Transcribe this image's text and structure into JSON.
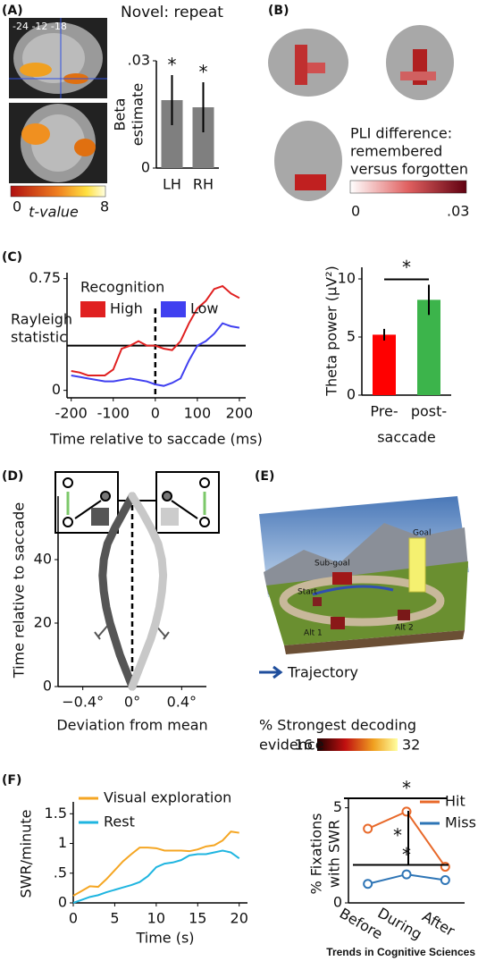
{
  "panels": {
    "A": {
      "label": "(A)",
      "coords": "-24 -12 -18",
      "colorbar": {
        "min": "0",
        "title": "t-value",
        "max": "8"
      }
    },
    "B": {
      "label": "(B)",
      "colorbar_title": [
        "PLI difference:",
        "remembered",
        "versus forgotten"
      ],
      "colorbar": {
        "min": "0",
        "max": ".03"
      }
    },
    "C": {
      "label": "(C)"
    },
    "D": {
      "label": "(D)"
    },
    "E": {
      "label": "(E)",
      "scene_labels": [
        "Goal",
        "Sub-goal",
        "Start",
        "Alt 1",
        "Alt 2"
      ],
      "legend": "Trajectory",
      "colorbar_title": [
        "% Strongest decoding",
        "evidence"
      ],
      "colorbar": {
        "min": "16",
        "max": "32"
      }
    },
    "F": {
      "label": "(F)"
    }
  },
  "chart_data": [
    {
      "type": "bar",
      "title": "Novel: repeat",
      "ylabel": [
        "Beta",
        "estimate"
      ],
      "categories": [
        "LH",
        "RH"
      ],
      "values": [
        0.019,
        0.017
      ],
      "errors": [
        0.007,
        0.007
      ],
      "color": "#7f7f7f",
      "ylim": [
        0,
        0.03
      ],
      "yticks": [
        0,
        {
          "value": 0.03,
          "label": ".03"
        }
      ],
      "annotations": [
        "*",
        "*"
      ]
    },
    {
      "type": "line",
      "xlabel": "Time relative to saccade (ms)",
      "ylabel": [
        "Rayleigh",
        "statistic"
      ],
      "legend_title": "Recognition",
      "x": [
        -200,
        -180,
        -160,
        -140,
        -120,
        -100,
        -80,
        -60,
        -40,
        -20,
        0,
        20,
        40,
        60,
        80,
        100,
        120,
        140,
        160,
        180,
        200
      ],
      "series": [
        {
          "name": "High",
          "color": "#e02020",
          "values": [
            0.13,
            0.12,
            0.1,
            0.1,
            0.1,
            0.14,
            0.28,
            0.3,
            0.33,
            0.3,
            0.3,
            0.28,
            0.27,
            0.33,
            0.45,
            0.55,
            0.6,
            0.68,
            0.7,
            0.65,
            0.62
          ]
        },
        {
          "name": "Low",
          "color": "#4040f0",
          "values": [
            0.1,
            0.09,
            0.08,
            0.07,
            0.06,
            0.06,
            0.07,
            0.08,
            0.07,
            0.06,
            0.04,
            0.03,
            0.05,
            0.08,
            0.2,
            0.3,
            0.33,
            0.38,
            0.45,
            0.43,
            0.42
          ]
        }
      ],
      "xlim": [
        -210,
        215
      ],
      "xticks": [
        -200,
        -100,
        0,
        100,
        200
      ],
      "ylim": [
        -0.05,
        0.79
      ],
      "yticks": [
        0,
        0.75
      ],
      "threshold": 0.3,
      "vline": 0
    },
    {
      "type": "bar",
      "ylabel": "Theta power (μV²)",
      "xlabel": "saccade",
      "categories": [
        "Pre-",
        "post-"
      ],
      "values": [
        5.2,
        8.2
      ],
      "errors": [
        0.5,
        1.3
      ],
      "colors": [
        "#ff0000",
        "#3cb44b"
      ],
      "ylim": [
        0,
        11
      ],
      "yticks": [
        0,
        5,
        10
      ],
      "annotations": [
        "*"
      ]
    },
    {
      "type": "line",
      "value_axis": "x",
      "xlabel": "Deviation from mean",
      "ylabel": "Time relative to saccade",
      "y": [
        0,
        5,
        10,
        15,
        20,
        25,
        30,
        35,
        40,
        45,
        50,
        55,
        60
      ],
      "series": [
        {
          "color": "#555555",
          "values": [
            0,
            -0.05,
            -0.1,
            -0.14,
            -0.18,
            -0.21,
            -0.23,
            -0.24,
            -0.23,
            -0.2,
            -0.14,
            -0.07,
            0
          ]
        },
        {
          "color": "#c8c8c8",
          "values": [
            0,
            0.05,
            0.1,
            0.15,
            0.19,
            0.22,
            0.24,
            0.25,
            0.24,
            0.21,
            0.15,
            0.08,
            0
          ]
        }
      ],
      "xlim": [
        -0.6,
        0.6
      ],
      "xticks": [
        {
          "value": -0.4,
          "label": "−0.4°"
        },
        {
          "value": 0,
          "label": "0°"
        },
        {
          "value": 0.4,
          "label": "0.4°"
        }
      ],
      "ylim": [
        0,
        60
      ],
      "yticks": [
        0,
        20,
        40
      ],
      "vline": 0
    },
    {
      "type": "line",
      "xlabel": "Time (s)",
      "ylabel": "SWR/minute",
      "x": [
        0,
        1,
        2,
        3,
        4,
        5,
        6,
        7,
        8,
        9,
        10,
        11,
        12,
        13,
        14,
        15,
        16,
        17,
        18,
        19,
        20
      ],
      "series": [
        {
          "name": "Visual exploration",
          "color": "#f5a623",
          "values": [
            0.12,
            0.2,
            0.28,
            0.27,
            0.4,
            0.55,
            0.7,
            0.82,
            0.93,
            0.93,
            0.92,
            0.88,
            0.88,
            0.88,
            0.87,
            0.9,
            0.95,
            0.97,
            1.05,
            1.2,
            1.18
          ]
        },
        {
          "name": "Rest",
          "color": "#1fb5e0",
          "values": [
            0,
            0.05,
            0.1,
            0.13,
            0.18,
            0.22,
            0.26,
            0.3,
            0.35,
            0.45,
            0.6,
            0.66,
            0.68,
            0.72,
            0.8,
            0.82,
            0.82,
            0.85,
            0.88,
            0.85,
            0.75
          ]
        }
      ],
      "xlim": [
        0,
        21
      ],
      "xticks": [
        0,
        5,
        10,
        15,
        20
      ],
      "ylim": [
        0,
        1.7
      ],
      "yticks": [
        0,
        {
          "value": 0.5,
          "label": ".5"
        },
        1,
        1.5
      ]
    },
    {
      "type": "line",
      "ylabel": [
        "% Fixations",
        "with SWR"
      ],
      "categories": [
        "Before",
        "During",
        "After"
      ],
      "markers": true,
      "series": [
        {
          "name": "Hit",
          "color": "#e8692a",
          "values": [
            3.9,
            4.8,
            1.9
          ]
        },
        {
          "name": "Miss",
          "color": "#2e75b6",
          "values": [
            1.0,
            1.5,
            1.2
          ]
        }
      ],
      "ylim": [
        0,
        5.5
      ],
      "yticks": [
        0,
        5
      ],
      "annotations": [
        "*",
        "*",
        "*"
      ]
    }
  ],
  "footer": "Trends in Cognitive Sciences"
}
